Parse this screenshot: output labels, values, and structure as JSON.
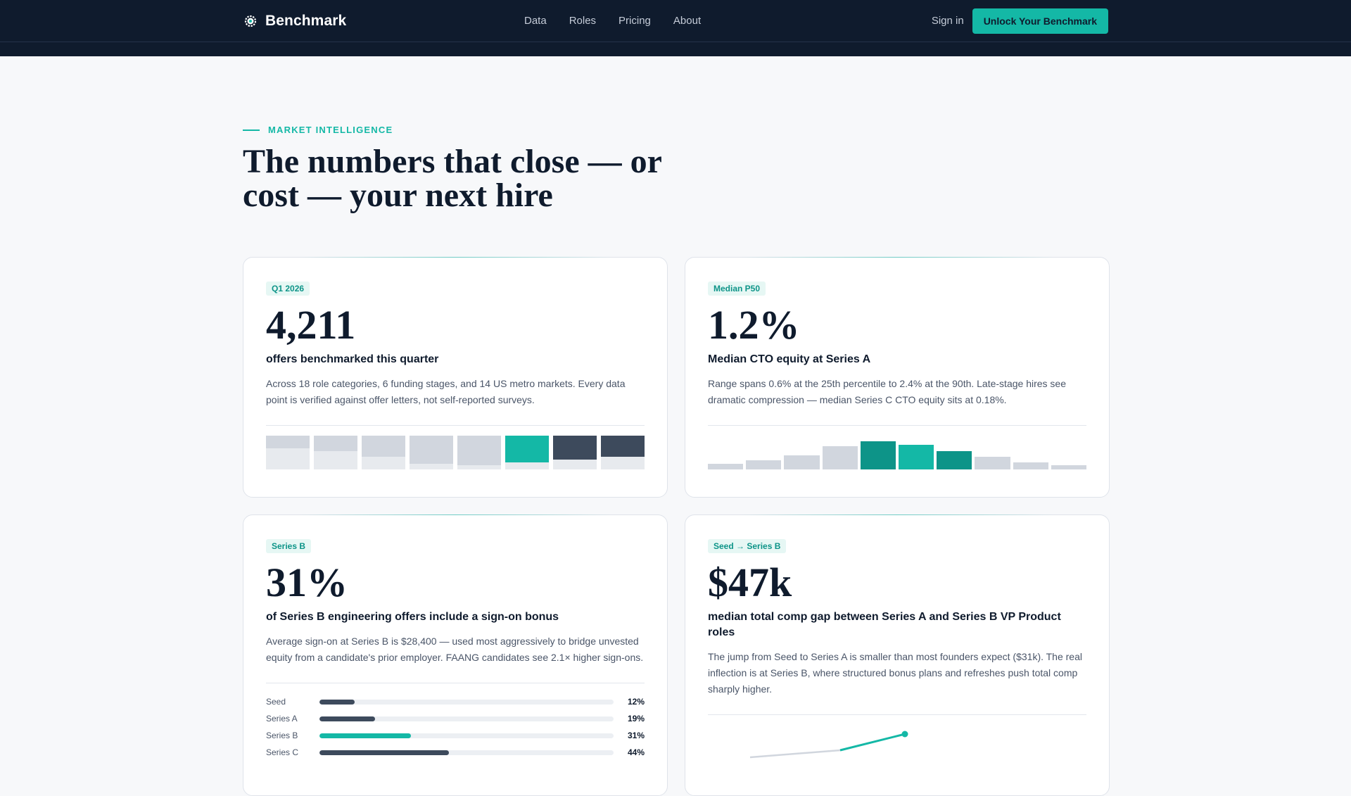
{
  "header": {
    "brand": "Benchmark",
    "nav": [
      "Data",
      "Roles",
      "Pricing",
      "About"
    ],
    "sign_in": "Sign in",
    "cta": "Unlock Your Benchmark"
  },
  "hero": {
    "eyebrow": "MARKET INTELLIGENCE",
    "title": "The numbers that close — or cost — your next hire"
  },
  "cards": [
    {
      "tag": "Q1 2026",
      "stat": "4,211",
      "label": "offers benchmarked this quarter",
      "desc": "Across 18 role categories, 6 funding stages, and 14 US metro markets. Every data point is verified against offer letters, not self-reported surveys."
    },
    {
      "tag": "Median P50",
      "stat": "1.2%",
      "label": "Median CTO equity at Series A",
      "desc": "Range spans 0.6% at the 25th percentile to 2.4% at the 90th. Late-stage hires see dramatic compression — median Series C CTO equity sits at 0.18%."
    },
    {
      "tag": "Series B",
      "stat": "31%",
      "label": "of Series B engineering offers include a sign-on bonus",
      "desc": "Average sign-on at Series B is $28,400 — used most aggressively to bridge unvested equity from a candidate's prior employer. FAANG candidates see 2.1× higher sign-ons.",
      "rows": [
        {
          "label": "Seed",
          "value": "12%",
          "pct": 0.12,
          "color": "#3d4a5c"
        },
        {
          "label": "Series A",
          "value": "19%",
          "pct": 0.19,
          "color": "#3d4a5c"
        },
        {
          "label": "Series B",
          "value": "31%",
          "pct": 0.31,
          "color": "#14b8a6"
        },
        {
          "label": "Series C",
          "value": "44%",
          "pct": 0.44,
          "color": "#3d4a5c"
        }
      ]
    },
    {
      "tag": "Seed → Series B",
      "stat": "$47k",
      "label": "median total comp gap between Series A and Series B VP Product roles",
      "desc": "The jump from Seed to Series A is smaller than most founders expect ($31k). The real inflection is at Series B, where structured bonus plans and refreshes push total comp sharply higher."
    }
  ],
  "colors": {
    "navy": "#0f1b2d",
    "teal": "#14b8a6",
    "teal_dark": "#0d9488",
    "slate": "#3d4a5c",
    "light": "#d1d6de"
  }
}
